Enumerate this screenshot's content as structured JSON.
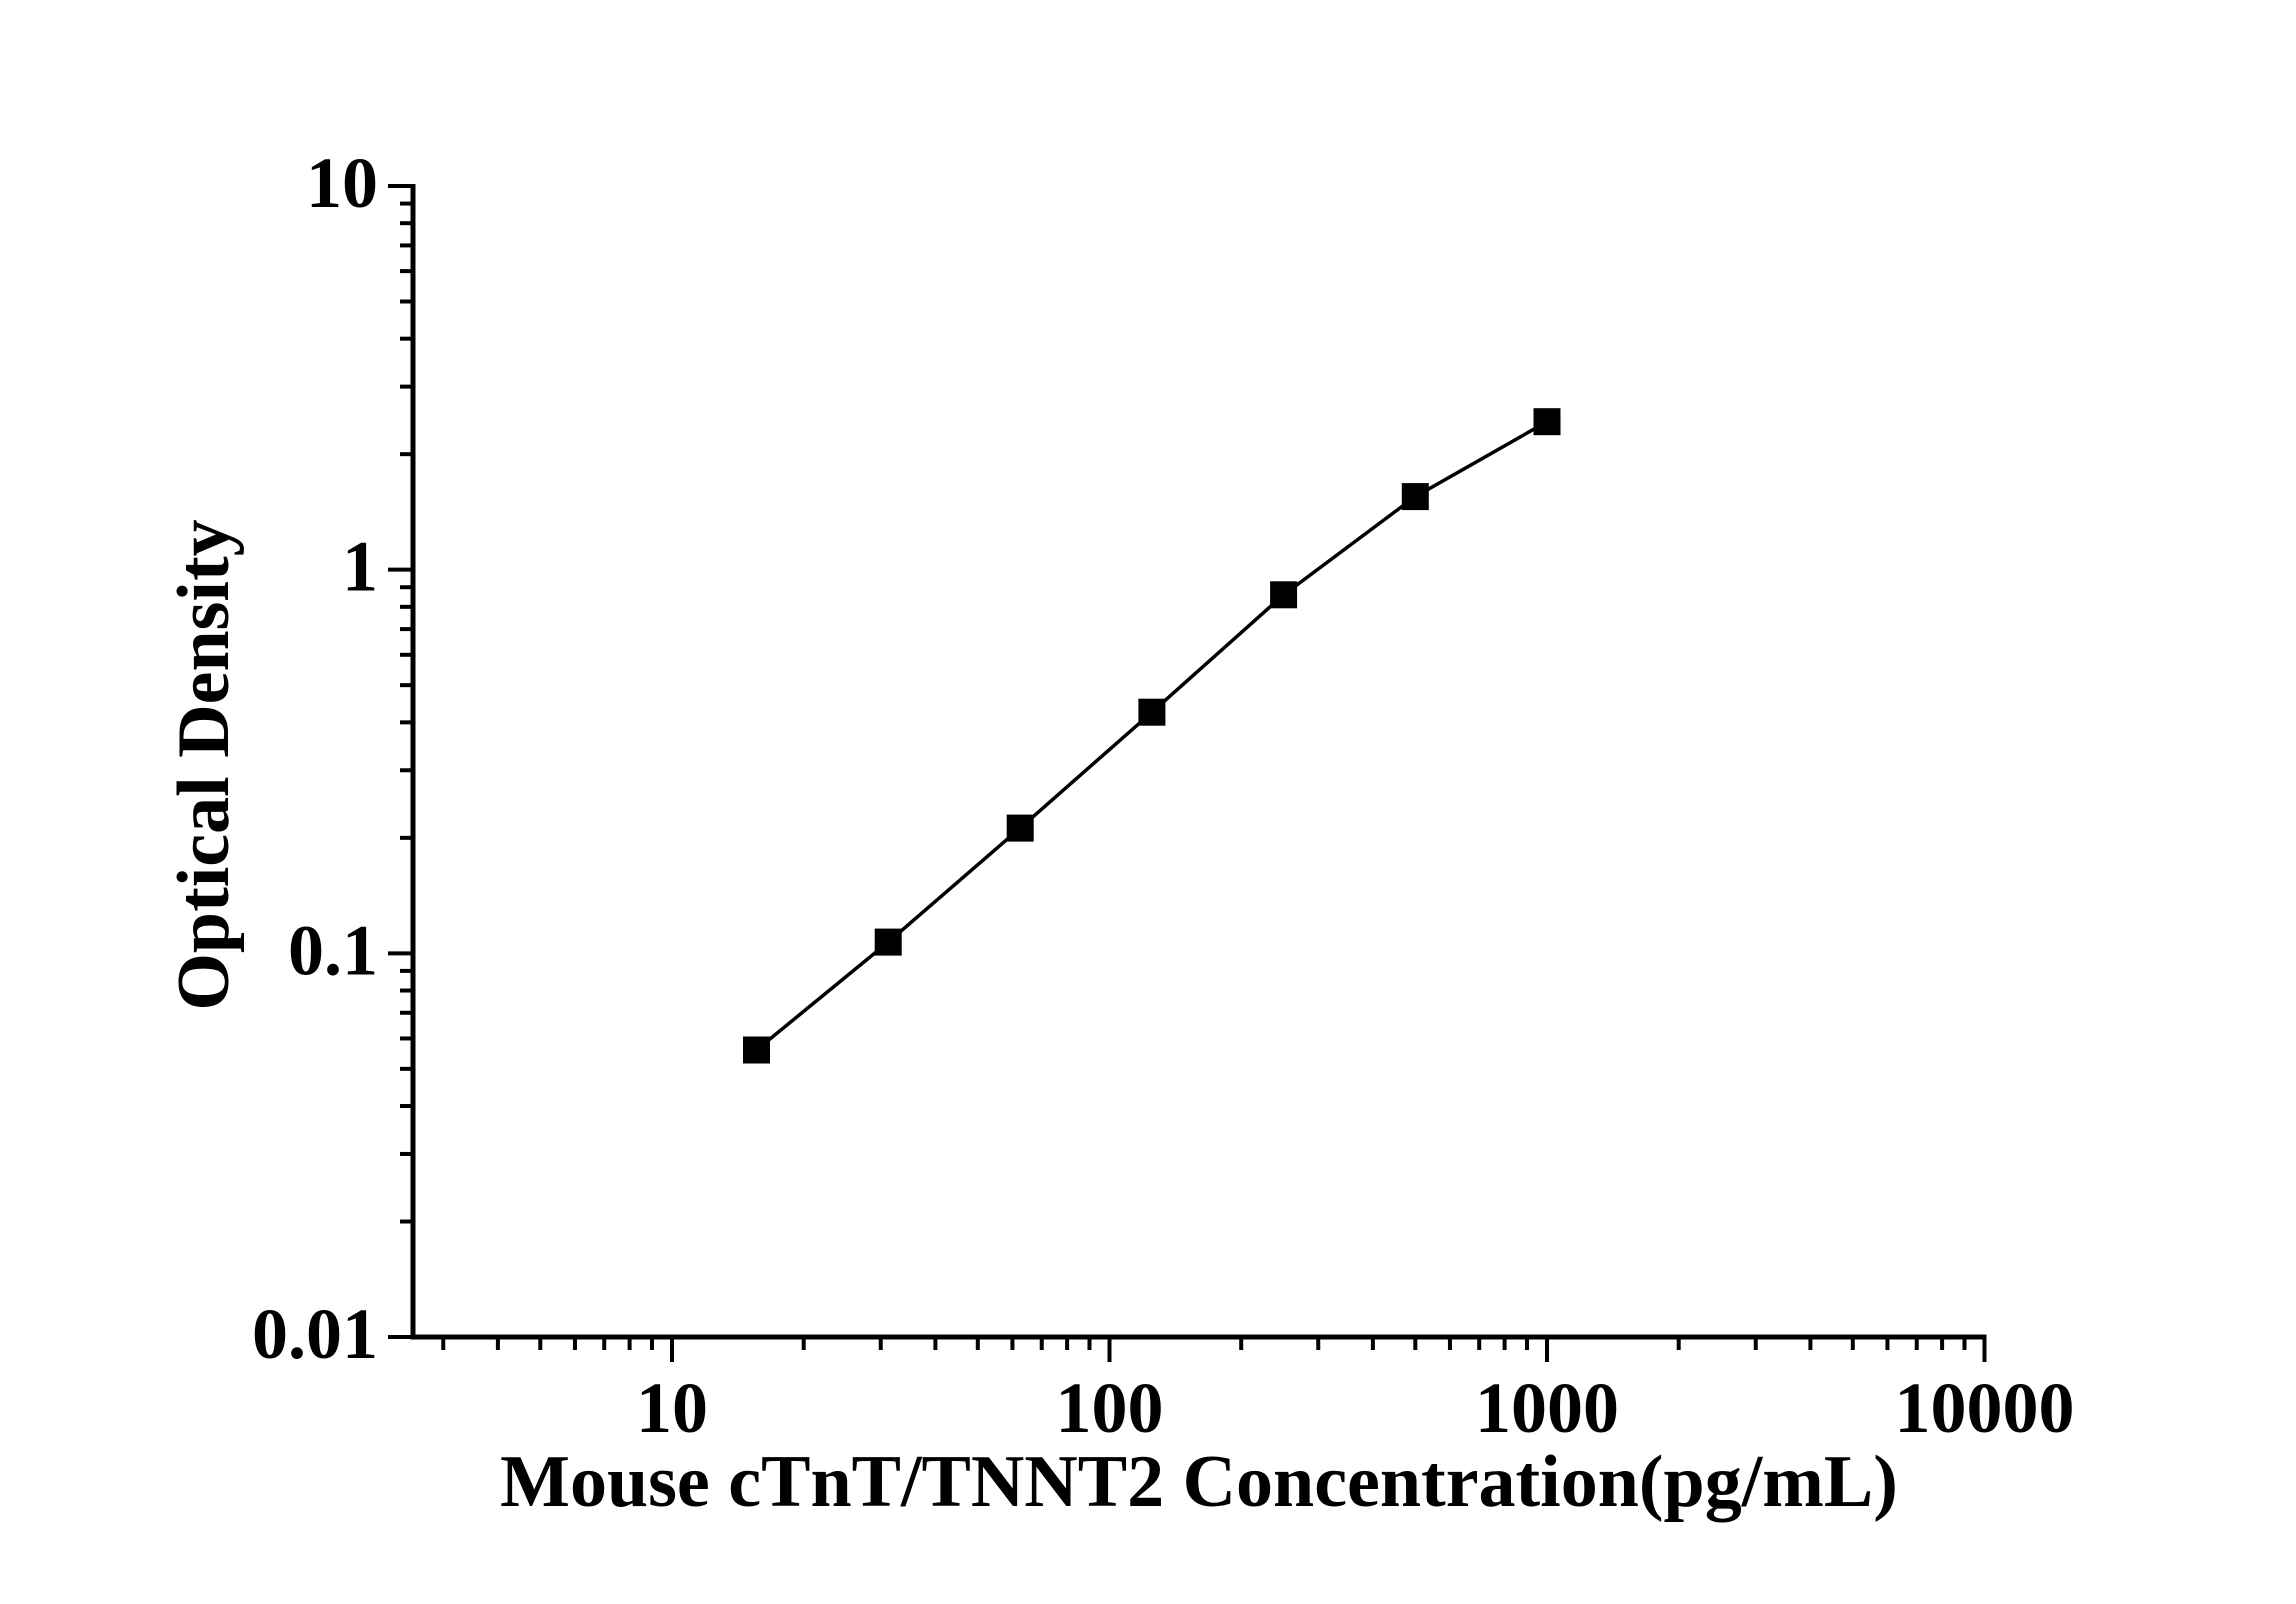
{
  "page": {
    "background_color": "#ffffff"
  },
  "chart_data": {
    "type": "line",
    "subtype": "scatter-line-standard-curve",
    "title": "",
    "xlabel": "Mouse cTnT/TNNT2 Concentration(pg/mL)",
    "ylabel": "Optical Density",
    "x_scale": "log",
    "y_scale": "log",
    "xlim": [
      2.5,
      10000
    ],
    "ylim": [
      0.01,
      10
    ],
    "x_tick_values": [
      10,
      100,
      1000,
      10000
    ],
    "x_tick_labels": [
      "10",
      "100",
      "1000",
      "10000"
    ],
    "y_tick_values": [
      10,
      1,
      0.1,
      0.01
    ],
    "y_tick_labels": [
      "10",
      "1",
      "0.1",
      "0.01"
    ],
    "minor_ticks": "log-decade-2-to-9",
    "grid": false,
    "legend": false,
    "series": [
      {
        "name": "standard-curve",
        "marker": "square",
        "marker_color": "#000000",
        "line_color": "#000000",
        "x": [
          15.6,
          31.2,
          62.5,
          125,
          250,
          500,
          1000
        ],
        "y": [
          0.056,
          0.107,
          0.212,
          0.425,
          0.86,
          1.55,
          2.43
        ]
      }
    ]
  }
}
